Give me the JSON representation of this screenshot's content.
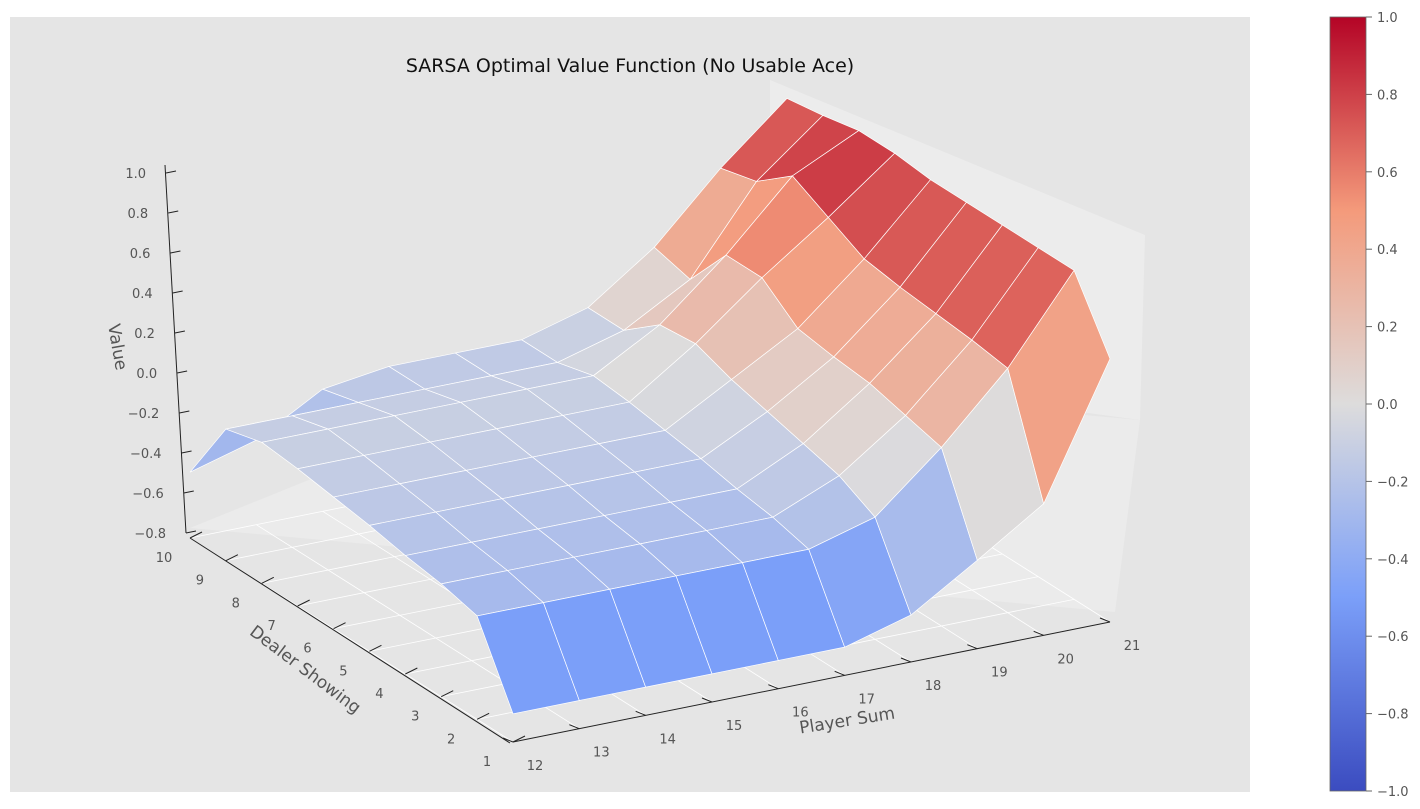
{
  "chart_data": {
    "type": "surface",
    "title": "SARSA Optimal Value Function (No Usable Ace)",
    "xlabel": "Player Sum",
    "ylabel": "Dealer Showing",
    "zlabel": "Value",
    "x": [
      12,
      13,
      14,
      15,
      16,
      17,
      18,
      19,
      20,
      21
    ],
    "y": [
      1,
      2,
      3,
      4,
      5,
      6,
      7,
      8,
      9,
      10
    ],
    "z_ticks": [
      "1.0",
      "0.8",
      "0.6",
      "0.4",
      "0.2",
      "0.0",
      "−0.2",
      "−0.4",
      "−0.6",
      "−0.8"
    ],
    "z_range": [
      -0.85,
      1.05
    ],
    "values": [
      [
        -0.7,
        -0.7,
        -0.7,
        -0.7,
        -0.7,
        -0.7,
        -0.6,
        -0.38,
        -0.15,
        0.55
      ],
      [
        -0.3,
        -0.3,
        -0.3,
        -0.3,
        -0.3,
        -0.3,
        -0.2,
        0.1,
        0.45,
        0.9
      ],
      [
        -0.25,
        -0.25,
        -0.25,
        -0.25,
        -0.25,
        -0.25,
        -0.1,
        0.15,
        0.48,
        0.9
      ],
      [
        -0.22,
        -0.22,
        -0.22,
        -0.22,
        -0.22,
        -0.22,
        -0.05,
        0.2,
        0.5,
        0.9
      ],
      [
        -0.18,
        -0.18,
        -0.18,
        -0.18,
        -0.18,
        -0.18,
        0.0,
        0.22,
        0.52,
        0.9
      ],
      [
        -0.15,
        -0.15,
        -0.15,
        -0.15,
        -0.15,
        -0.15,
        0.05,
        0.25,
        0.55,
        0.9
      ],
      [
        -0.12,
        -0.12,
        -0.12,
        -0.12,
        -0.12,
        -0.12,
        0.12,
        0.4,
        0.65,
        0.92
      ],
      [
        -0.1,
        -0.1,
        -0.1,
        -0.1,
        -0.1,
        -0.1,
        0.1,
        0.4,
        0.75,
        0.92
      ],
      [
        -0.15,
        -0.15,
        -0.15,
        -0.15,
        -0.15,
        -0.15,
        -0.05,
        0.15,
        0.6,
        0.88
      ],
      [
        -0.5,
        -0.4,
        -0.2,
        -0.15,
        -0.15,
        -0.15,
        -0.05,
        0.2,
        0.55,
        0.85
      ]
    ],
    "colorbar": {
      "range": [
        -1.0,
        1.0
      ],
      "ticks": [
        "1.0",
        "0.8",
        "0.6",
        "0.4",
        "0.2",
        "0.0",
        "−0.2",
        "−0.4",
        "−0.6",
        "−0.8",
        "−1.0"
      ],
      "colormap": "coolwarm"
    },
    "grid": true
  }
}
